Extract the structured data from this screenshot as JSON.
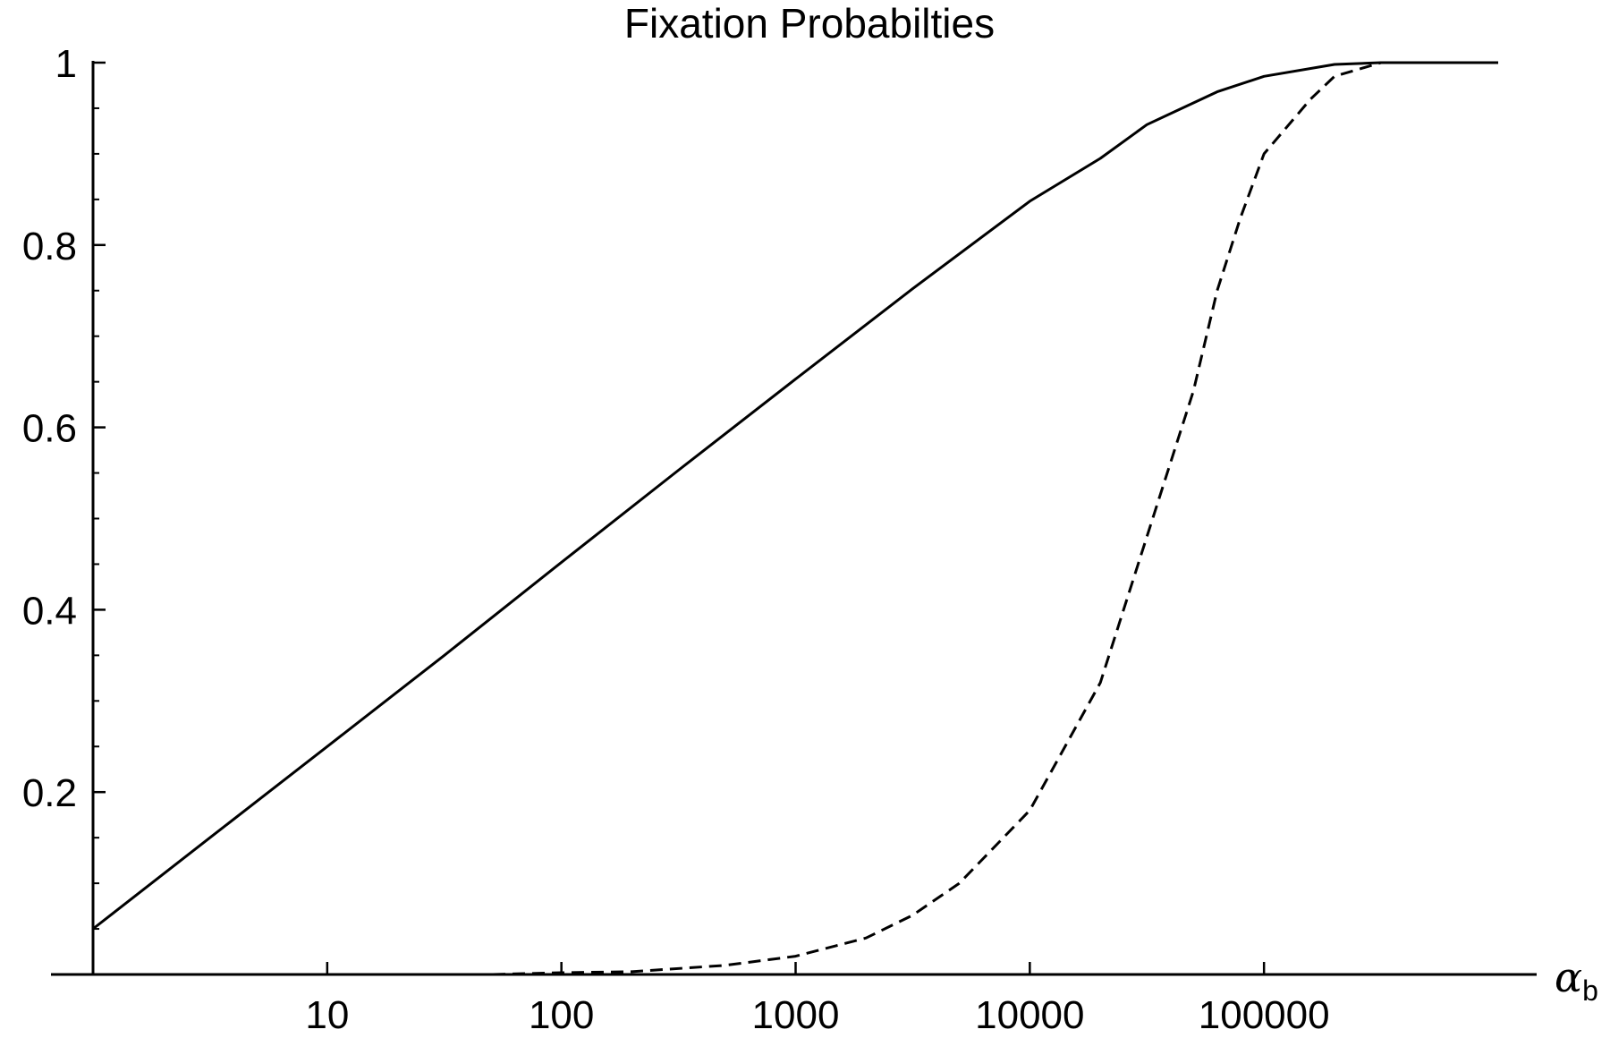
{
  "chart_data": {
    "type": "line",
    "title": "Fixation Probabilties",
    "xlabel": "α",
    "xlabel_subscript": "b",
    "ylabel": "",
    "xscale": "log",
    "xlim": [
      1,
      1000000
    ],
    "ylim": [
      0,
      1
    ],
    "grid": false,
    "legend": "none",
    "x_ticks": [
      {
        "value": 10,
        "label": "10"
      },
      {
        "value": 100,
        "label": "100"
      },
      {
        "value": 1000,
        "label": "1000"
      },
      {
        "value": 10000,
        "label": "10000"
      },
      {
        "value": 100000,
        "label": "100000"
      }
    ],
    "y_ticks": [
      {
        "value": 0.2,
        "label": "0.2"
      },
      {
        "value": 0.4,
        "label": "0.4"
      },
      {
        "value": 0.6,
        "label": "0.6"
      },
      {
        "value": 0.8,
        "label": "0.8"
      },
      {
        "value": 1,
        "label": "1"
      }
    ],
    "series": [
      {
        "style": "solid",
        "color": "#000000",
        "points": [
          [
            1,
            0.05
          ],
          [
            3.16,
            0.15
          ],
          [
            10,
            0.25
          ],
          [
            31.6,
            0.35
          ],
          [
            100,
            0.452
          ],
          [
            316,
            0.553
          ],
          [
            1000,
            0.653
          ],
          [
            3160,
            0.752
          ],
          [
            10000,
            0.848
          ],
          [
            20000,
            0.895
          ],
          [
            31600,
            0.932
          ],
          [
            63100,
            0.968
          ],
          [
            100000,
            0.985
          ],
          [
            200000,
            0.998
          ],
          [
            316000,
            1.0
          ],
          [
            1000000,
            1.0
          ]
        ]
      },
      {
        "style": "dashed",
        "color": "#000000",
        "points": [
          [
            5,
            0.0
          ],
          [
            50,
            0.0
          ],
          [
            100,
            0.002
          ],
          [
            200,
            0.003
          ],
          [
            500,
            0.01
          ],
          [
            1000,
            0.02
          ],
          [
            2000,
            0.04
          ],
          [
            3160,
            0.065
          ],
          [
            5000,
            0.1
          ],
          [
            10000,
            0.18
          ],
          [
            20000,
            0.32
          ],
          [
            31600,
            0.48
          ],
          [
            50000,
            0.64
          ],
          [
            63100,
            0.75
          ],
          [
            79400,
            0.83
          ],
          [
            100000,
            0.9
          ],
          [
            158000,
            0.96
          ],
          [
            200000,
            0.985
          ],
          [
            316000,
            1.0
          ]
        ]
      }
    ]
  }
}
